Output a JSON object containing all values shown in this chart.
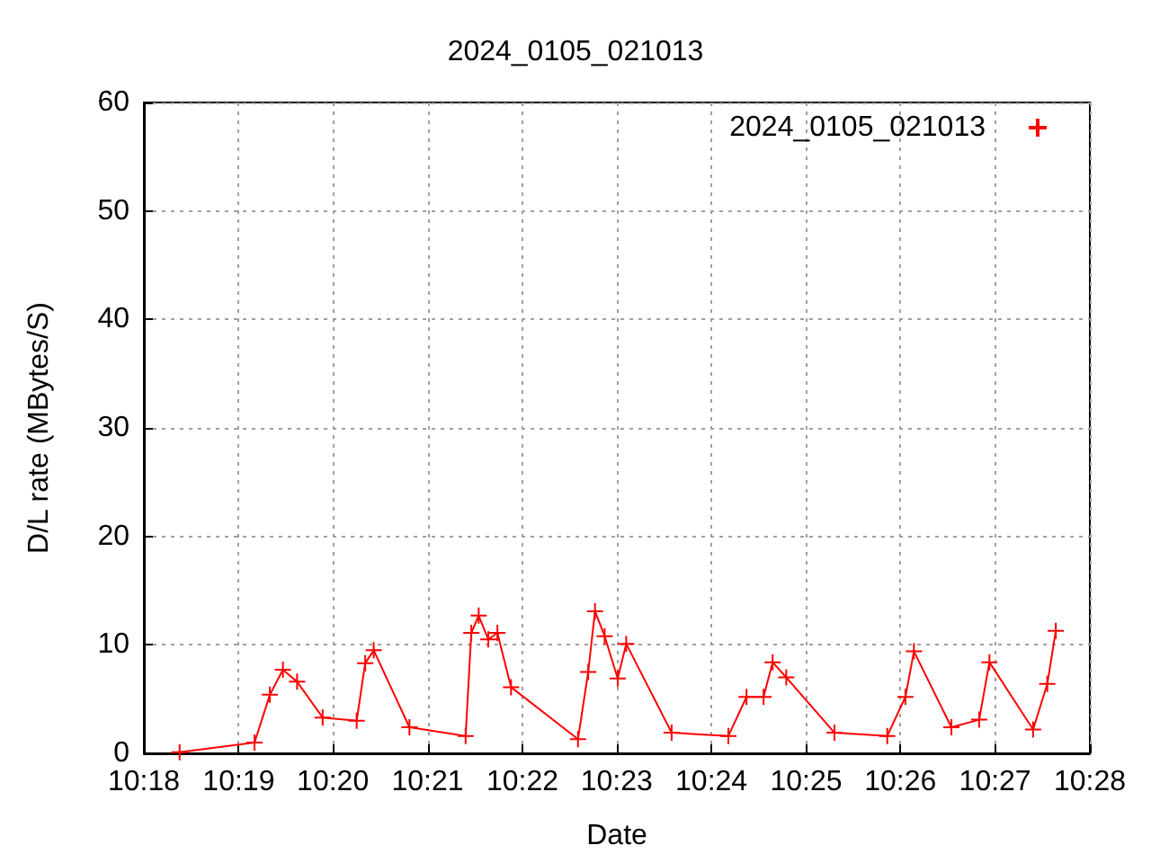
{
  "chart_data": {
    "type": "line",
    "title": "2024_0105_021013",
    "xlabel": "Date",
    "ylabel": "D/L rate (MBytes/S)",
    "xlim": [
      10.3,
      10.4667
    ],
    "xticks": [
      {
        "value": 10.3,
        "label": "10:18"
      },
      {
        "value": 10.3167,
        "label": "10:19"
      },
      {
        "value": 10.3333,
        "label": "10:20"
      },
      {
        "value": 10.35,
        "label": "10:21"
      },
      {
        "value": 10.3667,
        "label": "10:22"
      },
      {
        "value": 10.3833,
        "label": "10:23"
      },
      {
        "value": 10.4,
        "label": "10:24"
      },
      {
        "value": 10.4167,
        "label": "10:25"
      },
      {
        "value": 10.4333,
        "label": "10:26"
      },
      {
        "value": 10.45,
        "label": "10:27"
      },
      {
        "value": 10.4667,
        "label": "10:28"
      }
    ],
    "ylim": [
      0,
      60
    ],
    "yticks": [
      0,
      10,
      20,
      30,
      40,
      50,
      60
    ],
    "grid": true,
    "legend": "top right",
    "marker": "cross",
    "line_style": "solid",
    "series": [
      {
        "name": "2024_0105_021013",
        "color": "#ff0000",
        "x": [
          10.3063,
          10.3195,
          10.3222,
          10.3245,
          10.327,
          10.3315,
          10.3375,
          10.339,
          10.3405,
          10.3468,
          10.3567,
          10.3577,
          10.359,
          10.3607,
          10.3623,
          10.3647,
          10.3765,
          10.3783,
          10.3795,
          10.3812,
          10.3835,
          10.385,
          10.393,
          10.403,
          10.4062,
          10.4092,
          10.4108,
          10.4132,
          10.4217,
          10.431,
          10.4342,
          10.4357,
          10.4423,
          10.4472,
          10.449,
          10.4567,
          10.4592,
          10.4607
        ],
        "values": [
          0.1,
          1.0,
          5.4,
          7.7,
          6.6,
          3.3,
          3.0,
          8.3,
          9.5,
          2.4,
          1.6,
          11.1,
          12.7,
          10.5,
          11.1,
          6.1,
          1.3,
          7.5,
          13.1,
          10.8,
          6.9,
          10.1,
          1.9,
          1.6,
          5.2,
          5.2,
          8.4,
          7.0,
          1.9,
          1.6,
          5.2,
          9.4,
          2.4,
          3.1,
          8.4,
          2.2,
          6.4,
          11.3
        ]
      }
    ]
  }
}
